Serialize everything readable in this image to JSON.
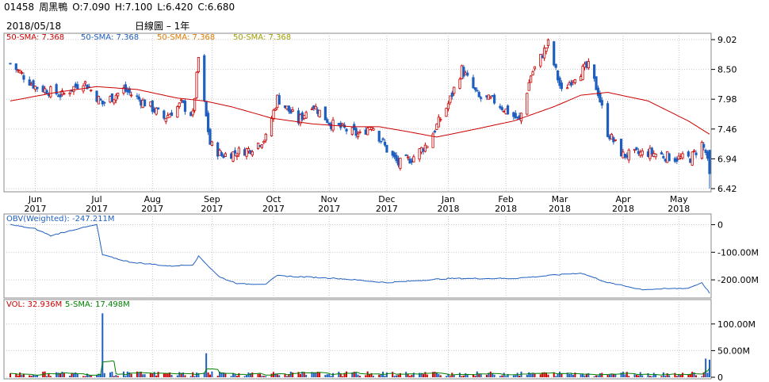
{
  "header": {
    "code": "01458",
    "name": "周黑鴨",
    "open": "O:7.090",
    "high": "H:7.100",
    "low": "L:6.420",
    "close": "C:6.680"
  },
  "colors": {
    "up": "#cc0000",
    "down": "#1f5fbf",
    "sma": "#cc0000",
    "obv": "#1f5fbf",
    "vol_sma": "#008000",
    "grid": "#c8c8c8",
    "frame": "#888888"
  },
  "chart_data": [
    {
      "type": "candlestick",
      "date": "2018/05/18",
      "title": "日線圖 – 1年",
      "legend": [
        {
          "text": "50-SMA: 7.368",
          "color": "#cc0000"
        },
        {
          "text": "50-SMA: 7.368",
          "color": "#1f5fbf"
        },
        {
          "text": "50-SMA: 7.368",
          "color": "#e07b00"
        },
        {
          "text": "50-SMA: 7.368",
          "color": "#a0a000"
        }
      ],
      "y_ticks": [
        "9.02",
        "8.50",
        "7.98",
        "7.46",
        "6.94",
        "6.42"
      ],
      "ylim": [
        6.42,
        9.02
      ],
      "x_labels": [
        {
          "month": "Jun",
          "year": "2017"
        },
        {
          "month": "Jul",
          "year": "2017"
        },
        {
          "month": "Aug",
          "year": "2017"
        },
        {
          "month": "Sep",
          "year": "2017"
        },
        {
          "month": "Oct",
          "year": "2017"
        },
        {
          "month": "Nov",
          "year": "2017"
        },
        {
          "month": "Dec",
          "year": "2017"
        },
        {
          "month": "Jan",
          "year": "2018"
        },
        {
          "month": "Feb",
          "year": "2018"
        },
        {
          "month": "Mar",
          "year": "2018"
        },
        {
          "month": "Apr",
          "year": "2018"
        },
        {
          "month": "May",
          "year": "2018"
        }
      ],
      "close_series": [
        {
          "date": "2017-05-19",
          "close": 8.6
        },
        {
          "date": "2017-06-01",
          "close": 8.2
        },
        {
          "date": "2017-06-15",
          "close": 8.05
        },
        {
          "date": "2017-06-26",
          "close": 8.3
        },
        {
          "date": "2017-07-06",
          "close": 7.9
        },
        {
          "date": "2017-07-17",
          "close": 8.15
        },
        {
          "date": "2017-07-31",
          "close": 7.85
        },
        {
          "date": "2017-08-07",
          "close": 7.65
        },
        {
          "date": "2017-08-16",
          "close": 7.9
        },
        {
          "date": "2017-08-22",
          "close": 7.7
        },
        {
          "date": "2017-08-25",
          "close": 8.7
        },
        {
          "date": "2017-08-28",
          "close": 7.9
        },
        {
          "date": "2017-08-31",
          "close": 7.2
        },
        {
          "date": "2017-09-06",
          "close": 7.0
        },
        {
          "date": "2017-09-20",
          "close": 7.1
        },
        {
          "date": "2017-09-29",
          "close": 7.3
        },
        {
          "date": "2017-10-05",
          "close": 8.0
        },
        {
          "date": "2017-10-16",
          "close": 7.6
        },
        {
          "date": "2017-10-23",
          "close": 7.9
        },
        {
          "date": "2017-11-02",
          "close": 7.55
        },
        {
          "date": "2017-11-17",
          "close": 7.35
        },
        {
          "date": "2017-11-23",
          "close": 7.55
        },
        {
          "date": "2017-12-01",
          "close": 7.1
        },
        {
          "date": "2017-12-07",
          "close": 6.85
        },
        {
          "date": "2017-12-14",
          "close": 6.95
        },
        {
          "date": "2017-12-22",
          "close": 7.2
        },
        {
          "date": "2018-01-02",
          "close": 7.9
        },
        {
          "date": "2018-01-09",
          "close": 8.5
        },
        {
          "date": "2018-01-18",
          "close": 8.0
        },
        {
          "date": "2018-01-26",
          "close": 7.95
        },
        {
          "date": "2018-02-08",
          "close": 7.6
        },
        {
          "date": "2018-02-14",
          "close": 8.4
        },
        {
          "date": "2018-02-23",
          "close": 8.95
        },
        {
          "date": "2018-03-02",
          "close": 8.1
        },
        {
          "date": "2018-03-09",
          "close": 8.4
        },
        {
          "date": "2018-03-16",
          "close": 8.55
        },
        {
          "date": "2018-03-21",
          "close": 8.1
        },
        {
          "date": "2018-03-26",
          "close": 7.4
        },
        {
          "date": "2018-04-03",
          "close": 7.0
        },
        {
          "date": "2018-04-17",
          "close": 7.05
        },
        {
          "date": "2018-04-30",
          "close": 6.95
        },
        {
          "date": "2018-05-08",
          "close": 6.95
        },
        {
          "date": "2018-05-14",
          "close": 7.2
        },
        {
          "date": "2018-05-16",
          "close": 7.05
        },
        {
          "date": "2018-05-18",
          "close": 6.68
        }
      ],
      "sma50_series": [
        {
          "date": "2017-05-19",
          "close": 7.95
        },
        {
          "date": "2017-06-12",
          "close": 8.1
        },
        {
          "date": "2017-07-03",
          "close": 8.2
        },
        {
          "date": "2017-07-24",
          "close": 8.15
        },
        {
          "date": "2017-08-14",
          "close": 8.0
        },
        {
          "date": "2017-08-28",
          "close": 7.95
        },
        {
          "date": "2017-09-11",
          "close": 7.85
        },
        {
          "date": "2017-10-02",
          "close": 7.65
        },
        {
          "date": "2017-10-23",
          "close": 7.55
        },
        {
          "date": "2017-11-13",
          "close": 7.5
        },
        {
          "date": "2017-11-27",
          "close": 7.5
        },
        {
          "date": "2017-12-11",
          "close": 7.42
        },
        {
          "date": "2017-12-27",
          "close": 7.32
        },
        {
          "date": "2018-01-15",
          "close": 7.45
        },
        {
          "date": "2018-02-05",
          "close": 7.6
        },
        {
          "date": "2018-02-26",
          "close": 7.85
        },
        {
          "date": "2018-03-12",
          "close": 8.05
        },
        {
          "date": "2018-03-26",
          "close": 8.1
        },
        {
          "date": "2018-04-16",
          "close": 7.95
        },
        {
          "date": "2018-05-07",
          "close": 7.6
        },
        {
          "date": "2018-05-18",
          "close": 7.37
        }
      ]
    },
    {
      "type": "line",
      "legend": "OBV(Weighted): -247.211M",
      "y_ticks": [
        "0",
        "-100.00M",
        "-200.00M"
      ],
      "ylim": [
        -260,
        10
      ],
      "y_unit": "M",
      "series": [
        {
          "date": "2017-05-19",
          "value": 0
        },
        {
          "date": "2017-06-01",
          "value": -15
        },
        {
          "date": "2017-06-09",
          "value": -40
        },
        {
          "date": "2017-06-20",
          "value": -20
        },
        {
          "date": "2017-07-03",
          "value": 0
        },
        {
          "date": "2017-07-06",
          "value": -110
        },
        {
          "date": "2017-07-20",
          "value": -135
        },
        {
          "date": "2017-08-10",
          "value": -150
        },
        {
          "date": "2017-08-22",
          "value": -145
        },
        {
          "date": "2017-08-25",
          "value": -115
        },
        {
          "date": "2017-09-05",
          "value": -190
        },
        {
          "date": "2017-09-15",
          "value": -215
        },
        {
          "date": "2017-09-29",
          "value": -215
        },
        {
          "date": "2017-10-05",
          "value": -185
        },
        {
          "date": "2017-11-06",
          "value": -195
        },
        {
          "date": "2017-12-01",
          "value": -210
        },
        {
          "date": "2018-01-02",
          "value": -195
        },
        {
          "date": "2018-02-05",
          "value": -195
        },
        {
          "date": "2018-03-12",
          "value": -175
        },
        {
          "date": "2018-03-26",
          "value": -210
        },
        {
          "date": "2018-04-13",
          "value": -235
        },
        {
          "date": "2018-05-07",
          "value": -230
        },
        {
          "date": "2018-05-14",
          "value": -210
        },
        {
          "date": "2018-05-18",
          "value": -247.2
        }
      ]
    },
    {
      "type": "bar",
      "legend": [
        {
          "text": "VOL: 32.936M",
          "color": "#cc0000"
        },
        {
          "text": "5-SMA: 17.498M",
          "color": "#008000"
        }
      ],
      "y_ticks": [
        "100.00M",
        "50.00M",
        "0"
      ],
      "ylim": [
        0,
        125
      ],
      "y_unit": "M",
      "spikes": [
        {
          "date": "2017-07-06",
          "value": 120
        },
        {
          "date": "2017-08-29",
          "value": 45
        },
        {
          "date": "2018-05-16",
          "value": 35
        },
        {
          "date": "2018-05-18",
          "value": 32.9
        }
      ]
    }
  ]
}
